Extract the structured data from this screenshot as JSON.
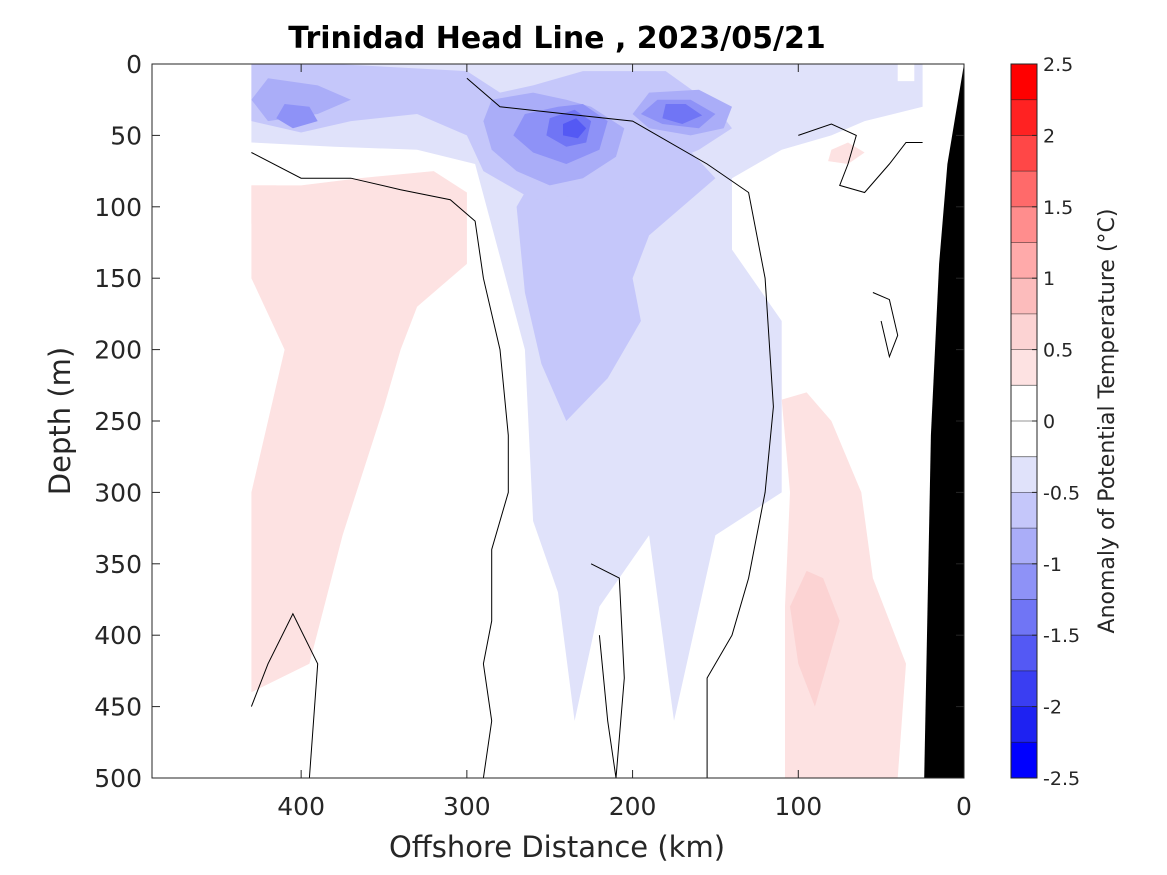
{
  "chart_data": {
    "type": "contourf",
    "title": "Trinidad Head Line , 2023/05/21",
    "xlabel": "Offshore Distance (km)",
    "ylabel": "Depth (m)",
    "xlim": [
      490,
      0
    ],
    "ylim": [
      0,
      500
    ],
    "x_ticks": [
      400,
      300,
      200,
      100,
      0
    ],
    "x_tick_labels": [
      "400",
      "300",
      "200",
      "100",
      "0"
    ],
    "y_ticks": [
      0,
      50,
      100,
      150,
      200,
      250,
      300,
      350,
      400,
      450,
      500
    ],
    "y_tick_labels": [
      "0",
      "50",
      "100",
      "150",
      "200",
      "250",
      "300",
      "350",
      "400",
      "450",
      "500"
    ],
    "colorbar": {
      "label": "Anomaly of Potential Temperature (°C)",
      "range": [
        -2.5,
        2.5
      ],
      "tick_values": [
        2.5,
        2,
        1.5,
        1,
        0.5,
        0,
        -0.5,
        -1,
        -1.5,
        -2,
        -2.5
      ],
      "tick_labels": [
        "2.5",
        "2",
        "1.5",
        "1",
        "0.5",
        "0",
        "-0.5",
        "-1",
        "-1.5",
        "-2",
        "-2.5"
      ],
      "levels": [
        {
          "min": 2.25,
          "max": 2.5,
          "color": "#ff0000"
        },
        {
          "min": 2.0,
          "max": 2.25,
          "color": "#ff2222"
        },
        {
          "min": 1.75,
          "max": 2.0,
          "color": "#ff4747"
        },
        {
          "min": 1.5,
          "max": 1.75,
          "color": "#ff6a6a"
        },
        {
          "min": 1.25,
          "max": 1.5,
          "color": "#ff8d8d"
        },
        {
          "min": 1.0,
          "max": 1.25,
          "color": "#ffaaaa"
        },
        {
          "min": 0.75,
          "max": 1.0,
          "color": "#fcbcbc"
        },
        {
          "min": 0.5,
          "max": 0.75,
          "color": "#fcd3d3"
        },
        {
          "min": 0.25,
          "max": 0.5,
          "color": "#fde2e2"
        },
        {
          "min": 0.0,
          "max": 0.25,
          "color": "#ffffff"
        },
        {
          "min": -0.25,
          "max": 0.0,
          "color": "#ffffff"
        },
        {
          "min": -0.5,
          "max": -0.25,
          "color": "#e0e2fa"
        },
        {
          "min": -0.75,
          "max": -0.5,
          "color": "#c5c7fa"
        },
        {
          "min": -1.0,
          "max": -0.75,
          "color": "#aaadf8"
        },
        {
          "min": -1.25,
          "max": -1.0,
          "color": "#8e92f7"
        },
        {
          "min": -1.5,
          "max": -1.25,
          "color": "#7075f5"
        },
        {
          "min": -1.75,
          "max": -1.5,
          "color": "#5459f4"
        },
        {
          "min": -2.0,
          "max": -1.75,
          "color": "#3a3ef2"
        },
        {
          "min": -2.25,
          "max": -2.0,
          "color": "#1e22f2"
        },
        {
          "min": -2.5,
          "max": -2.25,
          "color": "#0000ff"
        }
      ]
    },
    "regions": [
      {
        "name": "cool-upper-layer",
        "level": -0.375,
        "polygon": [
          [
            430,
            0
          ],
          [
            40,
            0
          ],
          [
            40,
            12
          ],
          [
            30,
            12
          ],
          [
            30,
            0
          ],
          [
            25,
            0
          ],
          [
            25,
            30
          ],
          [
            60,
            40
          ],
          [
            80,
            50
          ],
          [
            110,
            60
          ],
          [
            140,
            80
          ],
          [
            140,
            130
          ],
          [
            110,
            180
          ],
          [
            110,
            300
          ],
          [
            150,
            330
          ],
          [
            175,
            460
          ],
          [
            190,
            330
          ],
          [
            220,
            380
          ],
          [
            235,
            460
          ],
          [
            245,
            370
          ],
          [
            260,
            320
          ],
          [
            265,
            200
          ],
          [
            295,
            70
          ],
          [
            330,
            60
          ],
          [
            380,
            58
          ],
          [
            430,
            55
          ]
        ]
      },
      {
        "name": "cool-deep-column",
        "level": -0.625,
        "polygon": [
          [
            270,
            40
          ],
          [
            220,
            45
          ],
          [
            170,
            55
          ],
          [
            150,
            80
          ],
          [
            170,
            100
          ],
          [
            190,
            120
          ],
          [
            200,
            150
          ],
          [
            195,
            180
          ],
          [
            215,
            220
          ],
          [
            240,
            250
          ],
          [
            255,
            210
          ],
          [
            265,
            160
          ],
          [
            270,
            100
          ],
          [
            260,
            80
          ]
        ]
      },
      {
        "name": "cool-surface-band",
        "level": -0.625,
        "polygon": [
          [
            430,
            0
          ],
          [
            380,
            0
          ],
          [
            300,
            5
          ],
          [
            280,
            20
          ],
          [
            260,
            15
          ],
          [
            230,
            5
          ],
          [
            180,
            5
          ],
          [
            150,
            30
          ],
          [
            140,
            45
          ],
          [
            160,
            60
          ],
          [
            190,
            75
          ],
          [
            210,
            90
          ],
          [
            260,
            95
          ],
          [
            290,
            75
          ],
          [
            300,
            50
          ],
          [
            330,
            35
          ],
          [
            370,
            40
          ],
          [
            400,
            48
          ],
          [
            430,
            40
          ]
        ]
      },
      {
        "name": "cool-core-a",
        "level": -0.875,
        "polygon": [
          [
            285,
            25
          ],
          [
            260,
            20
          ],
          [
            240,
            25
          ],
          [
            225,
            30
          ],
          [
            205,
            45
          ],
          [
            210,
            65
          ],
          [
            230,
            80
          ],
          [
            250,
            85
          ],
          [
            270,
            75
          ],
          [
            285,
            60
          ],
          [
            290,
            40
          ]
        ]
      },
      {
        "name": "cool-core-b",
        "level": -0.875,
        "polygon": [
          [
            190,
            20
          ],
          [
            160,
            18
          ],
          [
            140,
            30
          ],
          [
            145,
            45
          ],
          [
            165,
            50
          ],
          [
            190,
            45
          ],
          [
            200,
            35
          ]
        ]
      },
      {
        "name": "cool-core-c",
        "level": -0.875,
        "polygon": [
          [
            420,
            10
          ],
          [
            390,
            15
          ],
          [
            370,
            25
          ],
          [
            390,
            35
          ],
          [
            420,
            40
          ],
          [
            430,
            25
          ]
        ]
      },
      {
        "name": "cool-inner-a",
        "level": -1.125,
        "polygon": [
          [
            265,
            35
          ],
          [
            245,
            30
          ],
          [
            230,
            28
          ],
          [
            215,
            40
          ],
          [
            220,
            60
          ],
          [
            240,
            70
          ],
          [
            260,
            62
          ],
          [
            272,
            50
          ]
        ]
      },
      {
        "name": "cool-inner-b",
        "level": -1.125,
        "polygon": [
          [
            185,
            25
          ],
          [
            165,
            25
          ],
          [
            150,
            35
          ],
          [
            160,
            45
          ],
          [
            182,
            42
          ],
          [
            195,
            35
          ]
        ]
      },
      {
        "name": "cool-inner-c",
        "level": -1.125,
        "polygon": [
          [
            410,
            28
          ],
          [
            395,
            30
          ],
          [
            390,
            40
          ],
          [
            405,
            45
          ],
          [
            415,
            38
          ]
        ]
      },
      {
        "name": "cool-peak-a",
        "level": -1.375,
        "polygon": [
          [
            250,
            38
          ],
          [
            235,
            32
          ],
          [
            225,
            40
          ],
          [
            228,
            55
          ],
          [
            240,
            58
          ],
          [
            252,
            50
          ]
        ]
      },
      {
        "name": "cool-peak-b",
        "level": -1.375,
        "polygon": [
          [
            180,
            28
          ],
          [
            168,
            28
          ],
          [
            158,
            36
          ],
          [
            170,
            42
          ],
          [
            182,
            38
          ]
        ]
      },
      {
        "name": "cool-peak-a-core",
        "level": -1.625,
        "polygon": [
          [
            242,
            42
          ],
          [
            234,
            38
          ],
          [
            228,
            45
          ],
          [
            233,
            52
          ],
          [
            242,
            50
          ]
        ]
      },
      {
        "name": "warm-offshore-mass",
        "level": 0.375,
        "polygon": [
          [
            430,
            85
          ],
          [
            400,
            85
          ],
          [
            365,
            80
          ],
          [
            320,
            75
          ],
          [
            300,
            90
          ],
          [
            300,
            140
          ],
          [
            330,
            170
          ],
          [
            340,
            200
          ],
          [
            350,
            240
          ],
          [
            375,
            330
          ],
          [
            395,
            420
          ],
          [
            430,
            440
          ],
          [
            430,
            300
          ],
          [
            420,
            250
          ],
          [
            410,
            200
          ],
          [
            430,
            150
          ]
        ]
      },
      {
        "name": "warm-offshore-upper",
        "level": 0.375,
        "polygon": [
          [
            430,
            85
          ],
          [
            415,
            85
          ],
          [
            405,
            95
          ],
          [
            410,
            110
          ],
          [
            430,
            112
          ]
        ]
      },
      {
        "name": "warm-nearshore-column",
        "level": 0.375,
        "polygon": [
          [
            110,
            235
          ],
          [
            95,
            230
          ],
          [
            80,
            250
          ],
          [
            62,
            300
          ],
          [
            55,
            360
          ],
          [
            35,
            420
          ],
          [
            40,
            500
          ],
          [
            108,
            500
          ],
          [
            108,
            380
          ],
          [
            105,
            300
          ]
        ]
      },
      {
        "name": "warm-nearshore-core",
        "level": 0.625,
        "polygon": [
          [
            95,
            355
          ],
          [
            85,
            360
          ],
          [
            75,
            390
          ],
          [
            90,
            450
          ],
          [
            100,
            420
          ],
          [
            105,
            380
          ]
        ]
      },
      {
        "name": "warm-upper-right",
        "level": 0.375,
        "polygon": [
          [
            80,
            60
          ],
          [
            70,
            55
          ],
          [
            60,
            62
          ],
          [
            70,
            70
          ],
          [
            82,
            68
          ]
        ]
      }
    ],
    "zero_contours": [
      [
        [
          430,
          62
        ],
        [
          400,
          80
        ],
        [
          370,
          80
        ],
        [
          340,
          88
        ],
        [
          310,
          95
        ],
        [
          295,
          110
        ],
        [
          290,
          150
        ],
        [
          280,
          200
        ],
        [
          275,
          260
        ],
        [
          275,
          300
        ],
        [
          285,
          340
        ],
        [
          285,
          390
        ],
        [
          290,
          420
        ],
        [
          285,
          460
        ],
        [
          290,
          500
        ]
      ],
      [
        [
          430,
          450
        ],
        [
          420,
          420
        ],
        [
          405,
          385
        ],
        [
          390,
          420
        ],
        [
          395,
          500
        ]
      ],
      [
        [
          225,
          350
        ],
        [
          208,
          360
        ],
        [
          205,
          430
        ],
        [
          210,
          500
        ],
        [
          215,
          460
        ],
        [
          220,
          400
        ]
      ],
      [
        [
          155,
          500
        ],
        [
          155,
          430
        ],
        [
          140,
          400
        ],
        [
          130,
          360
        ],
        [
          120,
          300
        ],
        [
          115,
          240
        ],
        [
          120,
          150
        ],
        [
          130,
          90
        ],
        [
          155,
          70
        ],
        [
          200,
          40
        ],
        [
          240,
          35
        ],
        [
          280,
          30
        ],
        [
          300,
          10
        ]
      ],
      [
        [
          55,
          160
        ],
        [
          45,
          165
        ],
        [
          40,
          190
        ],
        [
          45,
          205
        ],
        [
          50,
          180
        ]
      ],
      [
        [
          100,
          50
        ],
        [
          80,
          42
        ],
        [
          65,
          50
        ],
        [
          70,
          70
        ],
        [
          75,
          85
        ],
        [
          60,
          90
        ],
        [
          45,
          70
        ],
        [
          35,
          55
        ],
        [
          25,
          55
        ]
      ]
    ],
    "bathymetry": [
      [
        24,
        500
      ],
      [
        20,
        260
      ],
      [
        15,
        140
      ],
      [
        10,
        70
      ],
      [
        0,
        0
      ],
      [
        0,
        500
      ]
    ]
  },
  "colors": {
    "axis": "#262626",
    "contour": "#000000",
    "bathymetry": "#000000"
  }
}
